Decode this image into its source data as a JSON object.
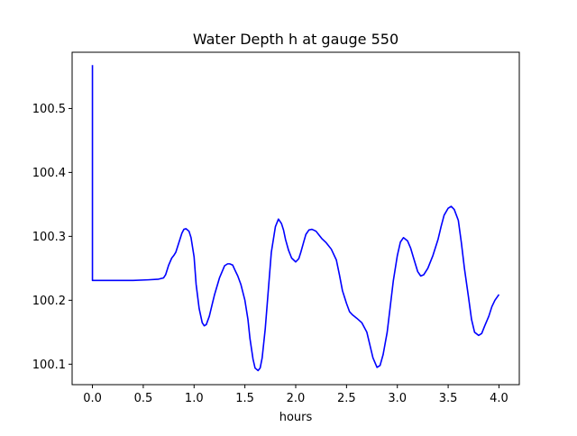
{
  "chart_data": {
    "type": "line",
    "title": "Water Depth h at gauge 550",
    "xlabel": "hours",
    "ylabel": "",
    "xlim": [
      -0.2,
      4.2
    ],
    "ylim": [
      100.068,
      100.588
    ],
    "xticks": [
      0.0,
      0.5,
      1.0,
      1.5,
      2.0,
      2.5,
      3.0,
      3.5,
      4.0
    ],
    "xtick_labels": [
      "0.0",
      "0.5",
      "1.0",
      "1.5",
      "2.0",
      "2.5",
      "3.0",
      "3.5",
      "4.0"
    ],
    "yticks": [
      100.1,
      100.2,
      100.3,
      100.4,
      100.5
    ],
    "ytick_labels": [
      "100.1",
      "100.2",
      "100.3",
      "100.4",
      "100.5"
    ],
    "grid": false,
    "legend": "none",
    "line_color": "#0000ff",
    "series": [
      {
        "x": [
          0.0,
          0.0,
          0.0,
          0.05,
          0.2,
          0.4,
          0.55,
          0.65,
          0.7,
          0.72,
          0.75,
          0.78,
          0.8,
          0.82,
          0.85,
          0.88,
          0.9,
          0.92,
          0.95,
          0.97,
          1.0,
          1.02,
          1.05,
          1.08,
          1.1,
          1.12,
          1.15,
          1.18,
          1.2,
          1.25,
          1.3,
          1.33,
          1.35,
          1.38,
          1.4,
          1.43,
          1.46,
          1.5,
          1.53,
          1.55,
          1.58,
          1.6,
          1.63,
          1.65,
          1.67,
          1.7,
          1.73,
          1.76,
          1.8,
          1.83,
          1.86,
          1.88,
          1.9,
          1.93,
          1.96,
          2.0,
          2.03,
          2.05,
          2.08,
          2.1,
          2.13,
          2.16,
          2.2,
          2.23,
          2.26,
          2.3,
          2.35,
          2.4,
          2.43,
          2.46,
          2.5,
          2.53,
          2.56,
          2.6,
          2.65,
          2.7,
          2.73,
          2.76,
          2.8,
          2.83,
          2.86,
          2.9,
          2.93,
          2.96,
          3.0,
          3.03,
          3.06,
          3.1,
          3.13,
          3.16,
          3.2,
          3.23,
          3.26,
          3.3,
          3.35,
          3.4,
          3.43,
          3.46,
          3.5,
          3.53,
          3.56,
          3.6,
          3.63,
          3.66,
          3.7,
          3.73,
          3.76,
          3.8,
          3.83,
          3.86,
          3.9,
          3.93,
          3.96,
          4.0
        ],
        "y": [
          100.568,
          100.5,
          100.231,
          100.231,
          100.231,
          100.231,
          100.232,
          100.233,
          100.235,
          100.24,
          100.255,
          100.266,
          100.27,
          100.275,
          100.29,
          100.305,
          100.311,
          100.312,
          100.308,
          100.298,
          100.268,
          100.225,
          100.187,
          100.165,
          100.16,
          100.162,
          100.175,
          100.195,
          100.208,
          100.235,
          100.254,
          100.257,
          100.257,
          100.255,
          100.248,
          100.238,
          100.225,
          100.2,
          100.17,
          100.14,
          100.108,
          100.094,
          100.09,
          100.094,
          100.11,
          100.155,
          100.215,
          100.275,
          100.315,
          100.327,
          100.32,
          100.31,
          100.295,
          100.278,
          100.266,
          100.26,
          100.265,
          100.275,
          100.292,
          100.303,
          100.31,
          100.311,
          100.308,
          100.302,
          100.296,
          100.29,
          100.28,
          100.263,
          100.24,
          100.215,
          100.195,
          100.182,
          100.177,
          100.172,
          100.165,
          100.15,
          100.13,
          100.11,
          100.095,
          100.098,
          100.115,
          100.15,
          100.19,
          100.23,
          100.27,
          100.291,
          100.298,
          100.293,
          100.282,
          100.266,
          100.245,
          100.238,
          100.24,
          100.25,
          100.27,
          100.295,
          100.315,
          100.333,
          100.344,
          100.347,
          100.342,
          100.325,
          100.29,
          100.25,
          100.205,
          100.17,
          100.15,
          100.145,
          100.148,
          100.16,
          100.175,
          100.19,
          100.2,
          100.209
        ]
      }
    ]
  }
}
